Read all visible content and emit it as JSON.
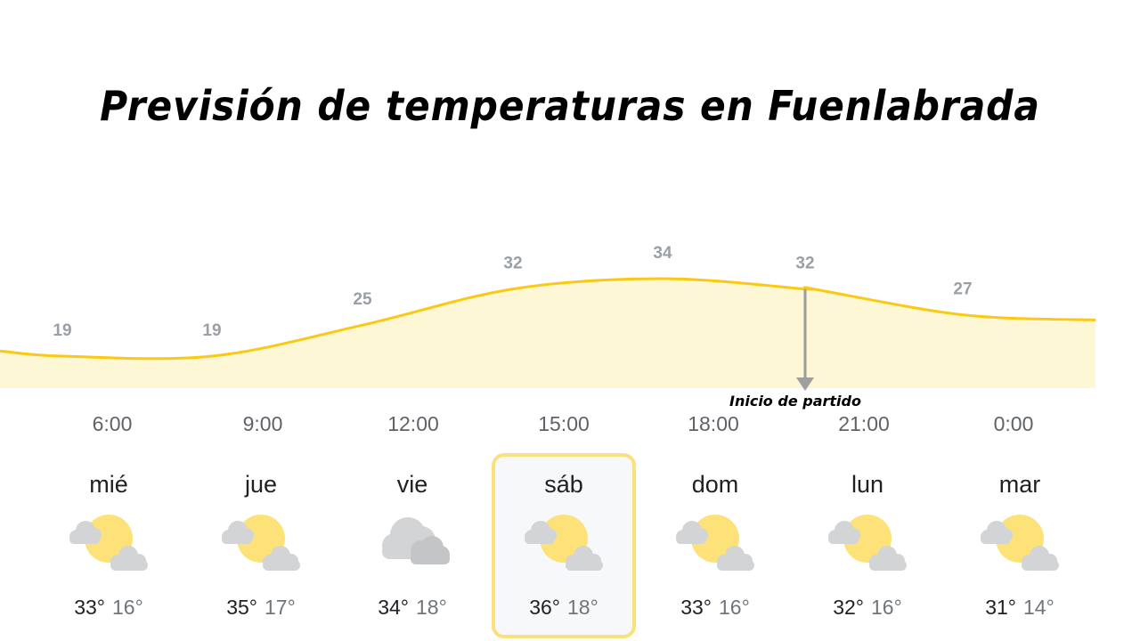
{
  "title": "Previsión de temperaturas en Fuenlabrada",
  "marker": {
    "label": "Inicio de partido",
    "x": "20:00"
  },
  "chart_data": {
    "type": "area",
    "x": [
      "4:00",
      "6:00",
      "9:00",
      "12:00",
      "15:00",
      "18:00",
      "20:00",
      "21:00",
      "0:00",
      "2:00"
    ],
    "values": [
      20,
      19,
      19,
      25,
      32,
      34,
      32,
      32,
      27,
      26
    ],
    "point_labels": [
      {
        "x": "6:00",
        "value": "19"
      },
      {
        "x": "9:00",
        "value": "19"
      },
      {
        "x": "12:00",
        "value": "25"
      },
      {
        "x": "15:00",
        "value": "32"
      },
      {
        "x": "18:00",
        "value": "34"
      },
      {
        "x": "20:00",
        "value": "32"
      },
      {
        "x": "0:00",
        "value": "27"
      }
    ],
    "tick_labels": [
      "6:00",
      "9:00",
      "12:00",
      "15:00",
      "18:00",
      "21:00",
      "0:00"
    ],
    "line_color": "#fbc913",
    "fill_color": "#fef7d6",
    "label_color": "#9aa0a6"
  },
  "days": [
    {
      "name": "mié",
      "max": "33°",
      "min": "16°",
      "icon": "partly-cloudy-night-icon",
      "selected": false
    },
    {
      "name": "jue",
      "max": "35°",
      "min": "17°",
      "icon": "partly-cloudy-night-icon",
      "selected": false
    },
    {
      "name": "vie",
      "max": "34°",
      "min": "18°",
      "icon": "cloudy-icon",
      "selected": false
    },
    {
      "name": "sáb",
      "max": "36°",
      "min": "18°",
      "icon": "partly-cloudy-night-icon",
      "selected": true
    },
    {
      "name": "dom",
      "max": "33°",
      "min": "16°",
      "icon": "partly-cloudy-night-icon",
      "selected": false
    },
    {
      "name": "lun",
      "max": "32°",
      "min": "16°",
      "icon": "partly-cloudy-night-icon",
      "selected": false
    },
    {
      "name": "mar",
      "max": "31°",
      "min": "14°",
      "icon": "partly-cloudy-night-icon",
      "selected": false
    }
  ],
  "colors": {
    "highlight": "#fbe07e",
    "moon": "#fde27a",
    "cloud": "#d3d4d6"
  }
}
